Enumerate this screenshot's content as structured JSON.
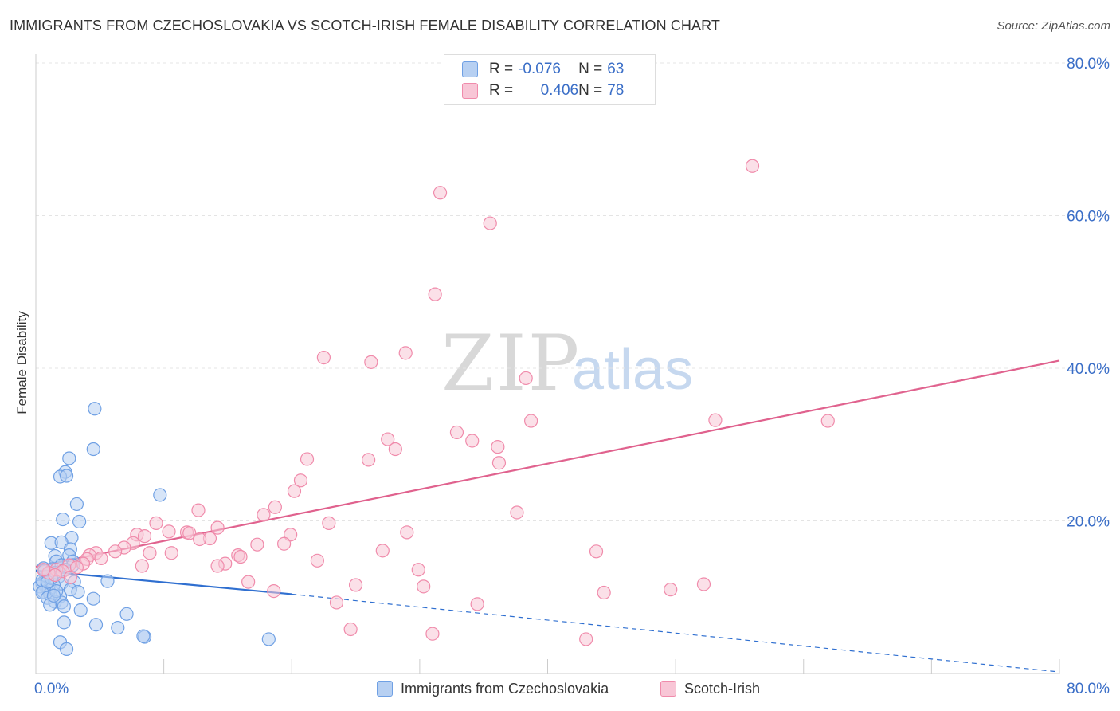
{
  "chart_data": {
    "type": "scatter",
    "title": "IMMIGRANTS FROM CZECHOSLOVAKIA VS SCOTCH-IRISH FEMALE DISABILITY CORRELATION CHART",
    "source": "Source: ZipAtlas.com",
    "ylabel": "Female Disability",
    "xlim": [
      0,
      80
    ],
    "ylim": [
      0,
      80
    ],
    "x_tick_labels": [
      "0.0%",
      "80.0%"
    ],
    "y_tick_labels": [
      "20.0%",
      "40.0%",
      "60.0%",
      "80.0%"
    ],
    "y_ticks": [
      20,
      40,
      60,
      80
    ],
    "watermark": [
      "ZIP",
      "atlas"
    ],
    "legend": [
      {
        "r_label": "R =",
        "r_value": "-0.076",
        "n_label": "N =",
        "n_value": "63"
      },
      {
        "r_label": "R =",
        "r_value": "0.406",
        "n_label": "N =",
        "n_value": "78"
      }
    ],
    "series": [
      {
        "name": "Immigrants from Czechoslovakia",
        "color": "#6fa0e4",
        "fill": "#b7d0f2",
        "trend": {
          "x0": 0,
          "y0": 13.5,
          "x1": 20,
          "y1": 10.4,
          "dash_x1": 80,
          "dash_y1": 0.2,
          "color": "#2f6fd0"
        },
        "points": [
          [
            4.6,
            34.7
          ],
          [
            4.5,
            29.4
          ],
          [
            2.6,
            28.2
          ],
          [
            2.3,
            26.4
          ],
          [
            1.9,
            25.8
          ],
          [
            2.4,
            25.9
          ],
          [
            9.7,
            23.4
          ],
          [
            3.2,
            22.2
          ],
          [
            3.4,
            19.9
          ],
          [
            2.1,
            20.2
          ],
          [
            2.8,
            17.8
          ],
          [
            1.2,
            17.1
          ],
          [
            2.0,
            17.2
          ],
          [
            2.7,
            16.3
          ],
          [
            1.5,
            15.4
          ],
          [
            2.6,
            15.5
          ],
          [
            2.9,
            14.7
          ],
          [
            1.6,
            14.7
          ],
          [
            2.9,
            14.2
          ],
          [
            0.6,
            13.8
          ],
          [
            1.3,
            13.7
          ],
          [
            2.0,
            14.2
          ],
          [
            1.5,
            13.2
          ],
          [
            1.0,
            13.1
          ],
          [
            1.8,
            12.7
          ],
          [
            0.8,
            12.7
          ],
          [
            5.6,
            12.1
          ],
          [
            3.0,
            12.0
          ],
          [
            0.5,
            11.8
          ],
          [
            2.0,
            11.8
          ],
          [
            1.4,
            11.6
          ],
          [
            0.8,
            11.3
          ],
          [
            0.3,
            11.4
          ],
          [
            1.0,
            11.0
          ],
          [
            2.7,
            11.0
          ],
          [
            0.6,
            10.7
          ],
          [
            3.3,
            10.7
          ],
          [
            1.1,
            10.4
          ],
          [
            0.5,
            10.6
          ],
          [
            1.9,
            10.1
          ],
          [
            0.9,
            9.9
          ],
          [
            4.5,
            9.8
          ],
          [
            1.5,
            9.4
          ],
          [
            2.0,
            9.3
          ],
          [
            1.1,
            9.0
          ],
          [
            2.2,
            8.8
          ],
          [
            3.5,
            8.3
          ],
          [
            7.1,
            7.8
          ],
          [
            2.2,
            6.7
          ],
          [
            4.7,
            6.4
          ],
          [
            6.4,
            6.0
          ],
          [
            8.5,
            4.8
          ],
          [
            8.4,
            4.9
          ],
          [
            18.2,
            4.5
          ],
          [
            1.9,
            4.1
          ],
          [
            2.4,
            3.2
          ],
          [
            0.5,
            12.2
          ],
          [
            1.2,
            12.5
          ],
          [
            0.7,
            13.5
          ],
          [
            1.6,
            10.8
          ],
          [
            0.9,
            12.0
          ],
          [
            2.3,
            13.6
          ],
          [
            1.4,
            10.2
          ]
        ]
      },
      {
        "name": "Scotch-Irish",
        "color": "#f08bab",
        "fill": "#f8c6d6",
        "trend": {
          "x0": 0,
          "y0": 14.0,
          "x1": 80,
          "y1": 41.0,
          "color": "#e0628e"
        },
        "points": [
          [
            56.0,
            66.5
          ],
          [
            31.6,
            63.0
          ],
          [
            35.5,
            59.0
          ],
          [
            31.2,
            49.7
          ],
          [
            22.5,
            41.4
          ],
          [
            26.2,
            40.8
          ],
          [
            28.9,
            42.0
          ],
          [
            38.3,
            38.7
          ],
          [
            38.7,
            33.1
          ],
          [
            53.1,
            33.2
          ],
          [
            61.9,
            33.1
          ],
          [
            27.5,
            30.7
          ],
          [
            34.1,
            30.5
          ],
          [
            32.9,
            31.6
          ],
          [
            36.1,
            29.7
          ],
          [
            28.1,
            29.4
          ],
          [
            21.2,
            28.1
          ],
          [
            26.0,
            28.0
          ],
          [
            36.2,
            27.6
          ],
          [
            20.7,
            25.3
          ],
          [
            20.2,
            23.9
          ],
          [
            12.7,
            21.4
          ],
          [
            18.7,
            21.8
          ],
          [
            17.8,
            20.8
          ],
          [
            37.6,
            21.1
          ],
          [
            22.9,
            19.7
          ],
          [
            9.4,
            19.7
          ],
          [
            11.8,
            18.5
          ],
          [
            14.2,
            19.1
          ],
          [
            29.0,
            18.5
          ],
          [
            19.9,
            18.2
          ],
          [
            7.9,
            18.2
          ],
          [
            8.5,
            18.0
          ],
          [
            10.4,
            18.6
          ],
          [
            12.0,
            18.4
          ],
          [
            13.6,
            17.7
          ],
          [
            12.8,
            17.6
          ],
          [
            7.6,
            17.1
          ],
          [
            6.9,
            16.5
          ],
          [
            6.2,
            16.0
          ],
          [
            17.3,
            16.9
          ],
          [
            19.4,
            17.0
          ],
          [
            8.9,
            15.8
          ],
          [
            10.6,
            15.8
          ],
          [
            4.7,
            15.8
          ],
          [
            4.2,
            15.5
          ],
          [
            5.1,
            15.1
          ],
          [
            43.8,
            16.0
          ],
          [
            27.1,
            16.1
          ],
          [
            15.8,
            15.5
          ],
          [
            16.0,
            15.3
          ],
          [
            22.0,
            14.8
          ],
          [
            14.8,
            14.4
          ],
          [
            14.2,
            14.1
          ],
          [
            8.3,
            14.1
          ],
          [
            4.0,
            15.0
          ],
          [
            3.7,
            14.4
          ],
          [
            2.6,
            14.2
          ],
          [
            3.2,
            13.9
          ],
          [
            1.6,
            13.6
          ],
          [
            1.0,
            13.2
          ],
          [
            2.1,
            13.4
          ],
          [
            1.5,
            12.9
          ],
          [
            2.7,
            12.6
          ],
          [
            29.9,
            13.6
          ],
          [
            16.6,
            12.0
          ],
          [
            25.0,
            11.6
          ],
          [
            30.3,
            11.4
          ],
          [
            52.2,
            11.7
          ],
          [
            49.6,
            11.0
          ],
          [
            44.4,
            10.6
          ],
          [
            18.6,
            10.8
          ],
          [
            23.5,
            9.3
          ],
          [
            34.5,
            9.1
          ],
          [
            24.6,
            5.8
          ],
          [
            31.0,
            5.2
          ],
          [
            43.0,
            4.5
          ],
          [
            0.6,
            13.6
          ]
        ]
      }
    ]
  },
  "ui": {
    "bottom_legend": [
      "Immigrants from Czechoslovakia",
      "Scotch-Irish"
    ]
  }
}
